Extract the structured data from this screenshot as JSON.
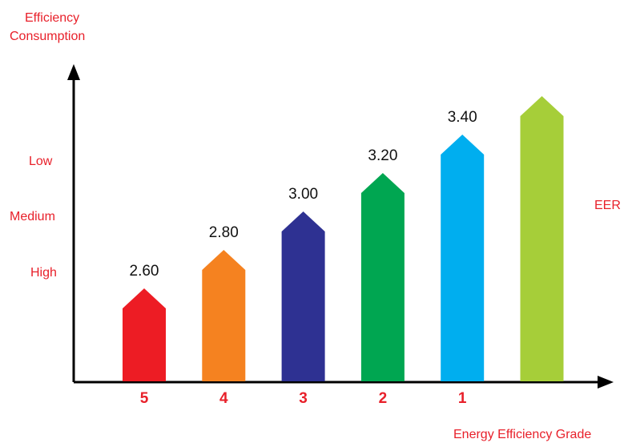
{
  "chart_data": {
    "type": "bar",
    "ylabel": [
      "Efficiency",
      "Consumption"
    ],
    "y_levels": [
      "Low",
      "Medium",
      "High"
    ],
    "right_label": "EER",
    "xlabel": "Energy Efficiency Grade",
    "categories": [
      "5",
      "4",
      "3",
      "2",
      "1",
      ""
    ],
    "values": [
      2.6,
      2.8,
      3.0,
      3.2,
      3.4,
      3.6
    ],
    "value_labels": [
      "2.60",
      "2.80",
      "3.00",
      "3.20",
      "3.40",
      ""
    ],
    "colors": [
      "#ed1c24",
      "#f58220",
      "#2e3192",
      "#00a651",
      "#00aeef",
      "#a6ce39"
    ],
    "label_color": "#e8202a",
    "grid": false
  }
}
